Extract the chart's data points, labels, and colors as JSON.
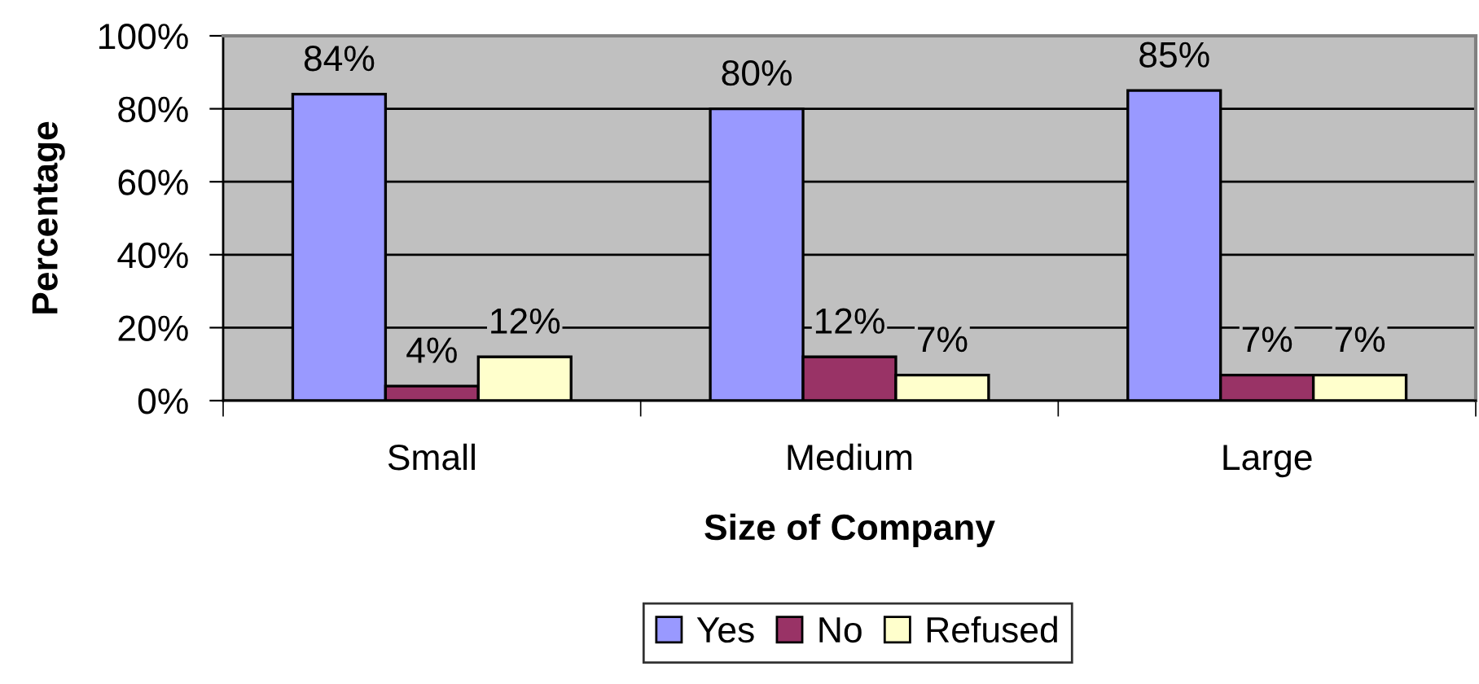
{
  "chart_data": {
    "type": "bar",
    "xlabel": "Size of Company",
    "ylabel": "Percentage",
    "categories": [
      "Small",
      "Medium",
      "Large"
    ],
    "series": [
      {
        "name": "Yes",
        "color": "#9999ff",
        "values": [
          84,
          80,
          85
        ],
        "value_labels": [
          "84%",
          "80%",
          "85%"
        ]
      },
      {
        "name": "No",
        "color": "#993366",
        "values": [
          4,
          12,
          7
        ],
        "value_labels": [
          "4%",
          "12%",
          "7%"
        ]
      },
      {
        "name": "Refused",
        "color": "#ffffcc",
        "values": [
          12,
          7,
          7
        ],
        "value_labels": [
          "12%",
          "7%",
          "7%"
        ]
      }
    ],
    "ylim": [
      0,
      100
    ],
    "yticks": [
      {
        "value": 0,
        "label": "0%"
      },
      {
        "value": 20,
        "label": "20%"
      },
      {
        "value": 40,
        "label": "40%"
      },
      {
        "value": 60,
        "label": "60%"
      },
      {
        "value": 80,
        "label": "80%"
      },
      {
        "value": 100,
        "label": "100%"
      }
    ],
    "grid": "y",
    "legend": "bottom"
  }
}
